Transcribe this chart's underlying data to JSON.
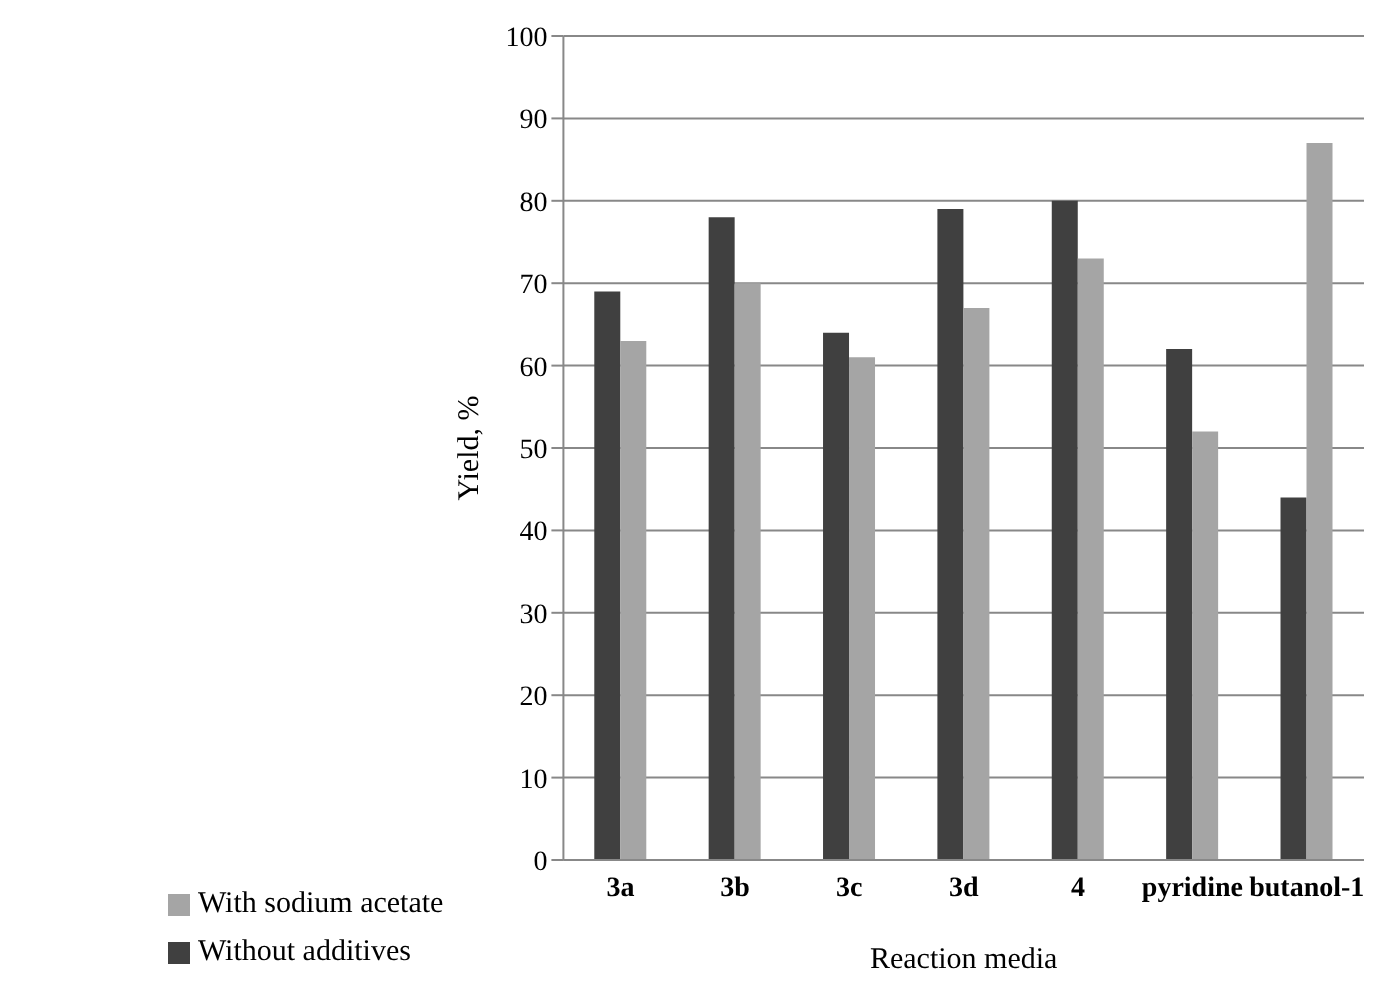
{
  "chart_data": {
    "type": "bar",
    "xlabel": "Reaction media",
    "ylabel": "Yield, %",
    "categories": [
      "3a",
      "3b",
      "3c",
      "3d",
      "4",
      "pyridine",
      "butanol-1"
    ],
    "series": [
      {
        "name": "Without additives",
        "color": "#404040",
        "values": [
          69,
          78,
          64,
          79,
          80,
          62,
          44
        ]
      },
      {
        "name": "With sodium acetate",
        "color": "#a5a5a5",
        "values": [
          63,
          70,
          61,
          67,
          73,
          52,
          87
        ]
      }
    ],
    "ylim": [
      0,
      100
    ],
    "yticks": [
      0,
      10,
      20,
      30,
      40,
      50,
      60,
      70,
      80,
      90,
      100
    ],
    "grid": "y",
    "legend": "bottom"
  }
}
